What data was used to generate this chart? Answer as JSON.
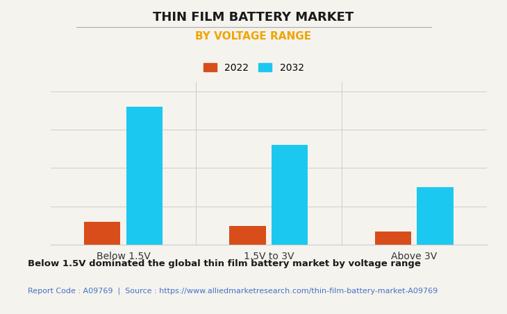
{
  "title": "THIN FILM BATTERY MARKET",
  "subtitle": "BY VOLTAGE RANGE",
  "categories": [
    "Below 1.5V",
    "1.5V to 3V",
    "Above 3V"
  ],
  "series": [
    {
      "label": "2022",
      "color": "#d84d1a",
      "values": [
        0.12,
        0.1,
        0.07
      ]
    },
    {
      "label": "2032",
      "color": "#1bc8f0",
      "values": [
        0.72,
        0.52,
        0.3
      ]
    }
  ],
  "ylim": [
    0,
    0.85
  ],
  "bar_width": 0.25,
  "background_color": "#f5f3ee",
  "plot_bg_color": "#f5f3ee",
  "title_fontsize": 13,
  "subtitle_fontsize": 11,
  "subtitle_color": "#f0a500",
  "tick_label_fontsize": 10,
  "legend_fontsize": 10,
  "footer_bold_text": "Below 1.5V dominated the global thin film battery market by voltage range",
  "footer_source_text": "Report Code : A09769  |  Source : https://www.alliedmarketresearch.com/thin-film-battery-market-A09769",
  "footer_source_color": "#4472c4",
  "grid_color": "#cccccc",
  "title_line_color": "#aaaaaa"
}
